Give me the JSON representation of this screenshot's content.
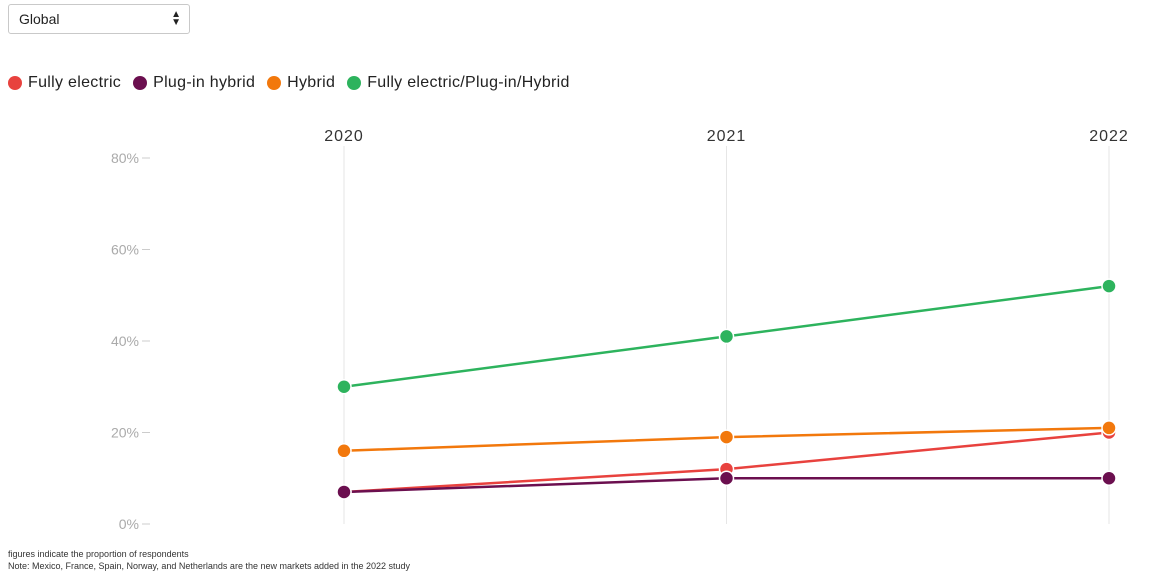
{
  "filter": {
    "selected": "Global"
  },
  "legend": [
    {
      "label": "Fully electric",
      "color": "#e8423e"
    },
    {
      "label": "Plug-in hybrid",
      "color": "#6b0f4f"
    },
    {
      "label": "Hybrid",
      "color": "#f2780c"
    },
    {
      "label": "Fully electric/Plug-in/Hybrid",
      "color": "#2db35d"
    }
  ],
  "notes": {
    "line1": "figures indicate the proportion of respondents",
    "line2": "Note: Mexico, France, Spain, Norway, and Netherlands are the new markets added in the 2022 study"
  },
  "chart_data": {
    "type": "line",
    "x": [
      "2020",
      "2021",
      "2022"
    ],
    "ylim": [
      0,
      80
    ],
    "yticks": [
      "0%",
      "20%",
      "40%",
      "60%",
      "80%"
    ],
    "ytick_values": [
      0,
      20,
      40,
      60,
      80
    ],
    "grid": "vertical",
    "legend_position": "top-left",
    "x_axis_position": "top",
    "series": [
      {
        "name": "Fully electric",
        "color": "#e8423e",
        "values": [
          7,
          12,
          20
        ]
      },
      {
        "name": "Plug-in hybrid",
        "color": "#6b0f4f",
        "values": [
          7,
          10,
          10
        ]
      },
      {
        "name": "Hybrid",
        "color": "#f2780c",
        "values": [
          16,
          19,
          21
        ]
      },
      {
        "name": "Fully electric/Plug-in/Hybrid",
        "color": "#2db35d",
        "values": [
          30,
          41,
          52
        ]
      }
    ]
  }
}
